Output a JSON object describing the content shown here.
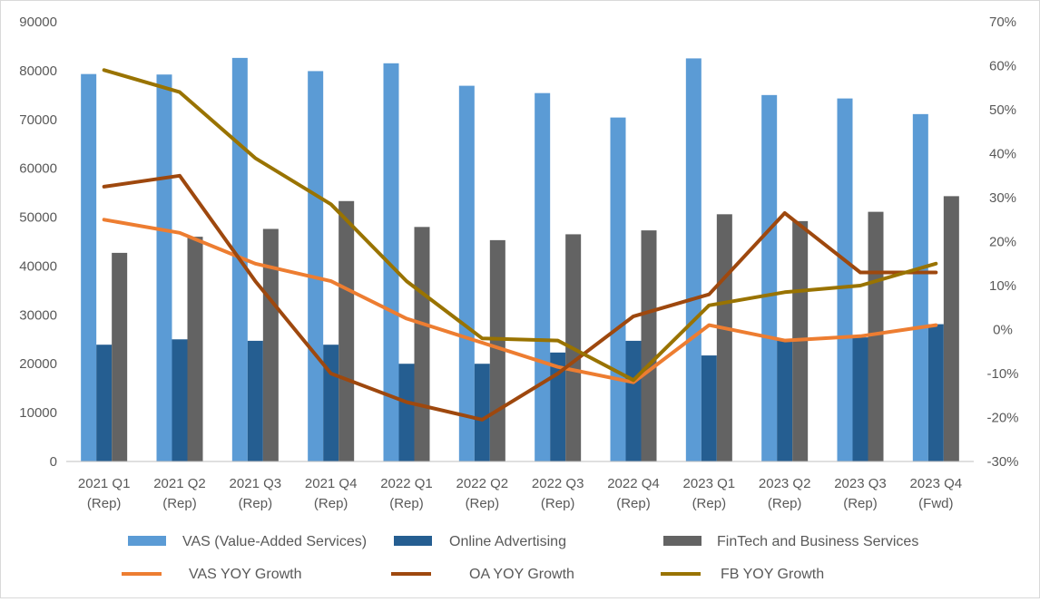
{
  "chart_data": {
    "type": "bar",
    "categories": [
      [
        "2021 Q1",
        "(Rep)"
      ],
      [
        "2021 Q2",
        "(Rep)"
      ],
      [
        "2021 Q3",
        "(Rep)"
      ],
      [
        "2021 Q4",
        "(Rep)"
      ],
      [
        "2022 Q1",
        "(Rep)"
      ],
      [
        "2022 Q2",
        "(Rep)"
      ],
      [
        "2022 Q3",
        "(Rep)"
      ],
      [
        "2022 Q4",
        "(Rep)"
      ],
      [
        "2023 Q1",
        "(Rep)"
      ],
      [
        "2023 Q2",
        "(Rep)"
      ],
      [
        "2023 Q3",
        "(Rep)"
      ],
      [
        "2023 Q4",
        "(Fwd)"
      ]
    ],
    "ylim": [
      0,
      90000
    ],
    "y_ticks": [
      0,
      10000,
      20000,
      30000,
      40000,
      50000,
      60000,
      70000,
      80000,
      90000
    ],
    "y2lim": [
      -30,
      70
    ],
    "y2_ticks": [
      -30,
      -20,
      -10,
      0,
      10,
      20,
      30,
      40,
      50,
      60,
      70
    ],
    "y2_tick_suffix": "%",
    "grid": false,
    "legend_position": "bottom",
    "bar_series": [
      {
        "name": "VAS (Value-Added Services)",
        "color": "#5B9BD5",
        "values": [
          79300,
          79200,
          82600,
          79900,
          81500,
          76900,
          75400,
          70400,
          82500,
          75000,
          74300,
          71100
        ]
      },
      {
        "name": "Online Advertising",
        "color": "#255E91",
        "values": [
          23900,
          25000,
          24700,
          23900,
          20000,
          20000,
          22300,
          24700,
          21700,
          25000,
          25400,
          28100
        ]
      },
      {
        "name": "FinTech and Business Services",
        "color": "#636363",
        "values": [
          42700,
          46000,
          47600,
          53300,
          48000,
          45300,
          46500,
          47300,
          50600,
          49200,
          51100,
          54300
        ]
      }
    ],
    "line_series": [
      {
        "name": "VAS YOY Growth",
        "color": "#ED7D31",
        "values": [
          25,
          22,
          15,
          11,
          2.5,
          -3,
          -8.5,
          -12,
          1,
          -2.5,
          -1.5,
          1
        ]
      },
      {
        "name": "OA YOY Growth",
        "color": "#9E480E",
        "values": [
          32.5,
          35,
          11,
          -10,
          -16.5,
          -20.5,
          -10,
          3,
          8,
          26.5,
          13,
          13
        ]
      },
      {
        "name": "FB YOY Growth",
        "color": "#997300",
        "values": [
          59,
          54,
          39,
          28.5,
          11,
          -2,
          -2.5,
          -11.5,
          5.5,
          8.5,
          10,
          15
        ]
      }
    ]
  }
}
